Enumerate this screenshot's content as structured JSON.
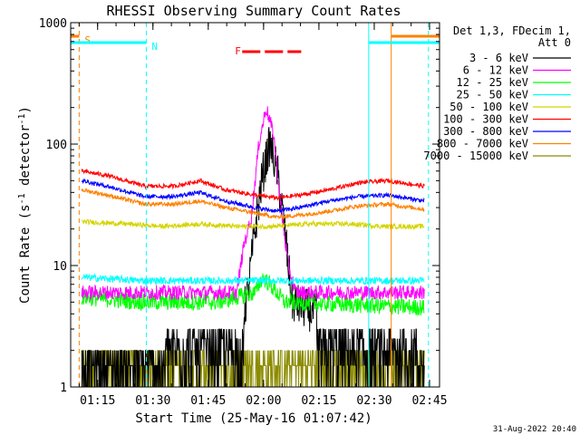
{
  "chart_data": {
    "type": "line",
    "title": "RHESSI Observing Summary Count Rates",
    "xlabel": "Start Time (25-May-16 01:07:42)",
    "ylabel": "Count Rate (s",
    "ylabel_sup1": "-1",
    "ylabel_mid": " detector",
    "ylabel_sup2": "-1",
    "ylabel_end": ")",
    "y_scale": "log",
    "ylim": [
      1,
      1000
    ],
    "xlim_minutes": [
      0,
      100
    ],
    "x_tick_labels": [
      "01:15",
      "01:30",
      "01:45",
      "02:00",
      "02:15",
      "02:30",
      "02:45"
    ],
    "x_tick_minutes": [
      7.3,
      22.3,
      37.3,
      52.3,
      67.3,
      82.3,
      97.3
    ],
    "y_tick_labels": [
      "1",
      "10",
      "100",
      "1000"
    ],
    "y_tick_values": [
      1,
      10,
      100,
      1000
    ],
    "legend": {
      "header1": "Det 1,3, FDecim 1,",
      "header2": "Att 0",
      "entries": [
        {
          "label": "3 - 6 keV",
          "color": "#000000"
        },
        {
          "label": "6 - 12 keV",
          "color": "#ff00ff"
        },
        {
          "label": "12 - 25 keV",
          "color": "#00ff00"
        },
        {
          "label": "25 - 50 keV",
          "color": "#00ffff"
        },
        {
          "label": "50 - 100 keV",
          "color": "#d4d400"
        },
        {
          "label": "100 - 300 keV",
          "color": "#ff0000"
        },
        {
          "label": "300 - 800 keV",
          "color": "#0000ff"
        },
        {
          "label": "800 - 7000 keV",
          "color": "#ff8000"
        },
        {
          "label": "7000 - 15000 keV",
          "color": "#8b8b00"
        }
      ]
    },
    "series": [
      {
        "name": "3 - 6 keV",
        "color": "#000000",
        "x": [
          3,
          20,
          45,
          48,
          50,
          52,
          54,
          56,
          58,
          60,
          96
        ],
        "y": [
          1.5,
          1.5,
          2,
          6,
          20,
          55,
          100,
          60,
          20,
          5,
          1.5
        ]
      },
      {
        "name": "6 - 12 keV",
        "color": "#ff00ff",
        "x": [
          3,
          20,
          45,
          47,
          49,
          51,
          53,
          55,
          57,
          59,
          61,
          96
        ],
        "y": [
          6,
          6,
          6,
          15,
          25,
          100,
          200,
          120,
          30,
          10,
          6,
          6
        ]
      },
      {
        "name": "12 - 25 keV",
        "color": "#00ff00",
        "x": [
          3,
          20,
          40,
          50,
          52,
          54,
          58,
          96
        ],
        "y": [
          5.5,
          5,
          5,
          6,
          8,
          7,
          5,
          4.5
        ]
      },
      {
        "name": "25 - 50 keV",
        "color": "#00ffff",
        "x": [
          3,
          20,
          40,
          60,
          80,
          96
        ],
        "y": [
          8,
          7.5,
          7.5,
          7.5,
          7.5,
          7.5
        ]
      },
      {
        "name": "50 - 100 keV",
        "color": "#d4d400",
        "x": [
          3,
          15,
          25,
          35,
          45,
          55,
          65,
          75,
          85,
          96
        ],
        "y": [
          23,
          22,
          21,
          22,
          21,
          21,
          22,
          22,
          21,
          21
        ]
      },
      {
        "name": "100 - 300 keV",
        "color": "#ff0000",
        "x": [
          3,
          10,
          20,
          28,
          35,
          42,
          50,
          56,
          62,
          70,
          78,
          86,
          96
        ],
        "y": [
          60,
          55,
          45,
          45,
          50,
          42,
          38,
          36,
          38,
          42,
          48,
          50,
          45
        ]
      },
      {
        "name": "300 - 800 keV",
        "color": "#0000ff",
        "x": [
          3,
          10,
          20,
          28,
          35,
          42,
          50,
          56,
          62,
          70,
          78,
          86,
          96
        ],
        "y": [
          50,
          45,
          37,
          37,
          40,
          34,
          30,
          28,
          30,
          34,
          37,
          38,
          34
        ]
      },
      {
        "name": "800 - 7000 keV",
        "color": "#ff8000",
        "x": [
          3,
          10,
          20,
          28,
          35,
          42,
          50,
          56,
          62,
          70,
          78,
          86,
          96
        ],
        "y": [
          42,
          38,
          32,
          32,
          34,
          30,
          27,
          25,
          26,
          28,
          31,
          32,
          29
        ]
      },
      {
        "name": "7000 - 15000 keV",
        "color": "#8b8b00",
        "x": [
          3,
          20,
          40,
          60,
          80,
          96
        ],
        "y": [
          1.4,
          1.4,
          1.4,
          1.4,
          1.4,
          1.4
        ]
      }
    ],
    "flags": [
      {
        "label": "S",
        "color": "#ff8000",
        "x_start": 0,
        "x_end": 2.3,
        "style": "solid"
      },
      {
        "label": "N",
        "color": "#00ffff",
        "x_start": 0,
        "x_end": 20.5,
        "style": "solid"
      },
      {
        "label": "N",
        "color": "#00ffff",
        "x_start": 80.8,
        "x_end": 100,
        "style": "solid"
      },
      {
        "label": "F",
        "color": "#ff0000",
        "x_start": 46.5,
        "x_end": 62.5,
        "style": "dashed"
      },
      {
        "label": "",
        "color": "#ff8000",
        "x_start": 86.9,
        "x_end": 100,
        "style": "solid"
      }
    ],
    "vertical_markers": [
      {
        "x": 2.3,
        "color": "#ff8000",
        "style": "dashed"
      },
      {
        "x": 20.5,
        "color": "#00ffff",
        "style": "dashed"
      },
      {
        "x": 80.8,
        "color": "#00ffff",
        "style": "solid"
      },
      {
        "x": 86.9,
        "color": "#ff8000",
        "style": "solid"
      },
      {
        "x": 97.0,
        "color": "#00ffff",
        "style": "dashed"
      }
    ]
  },
  "footer_date": "31-Aug-2022 20:40"
}
